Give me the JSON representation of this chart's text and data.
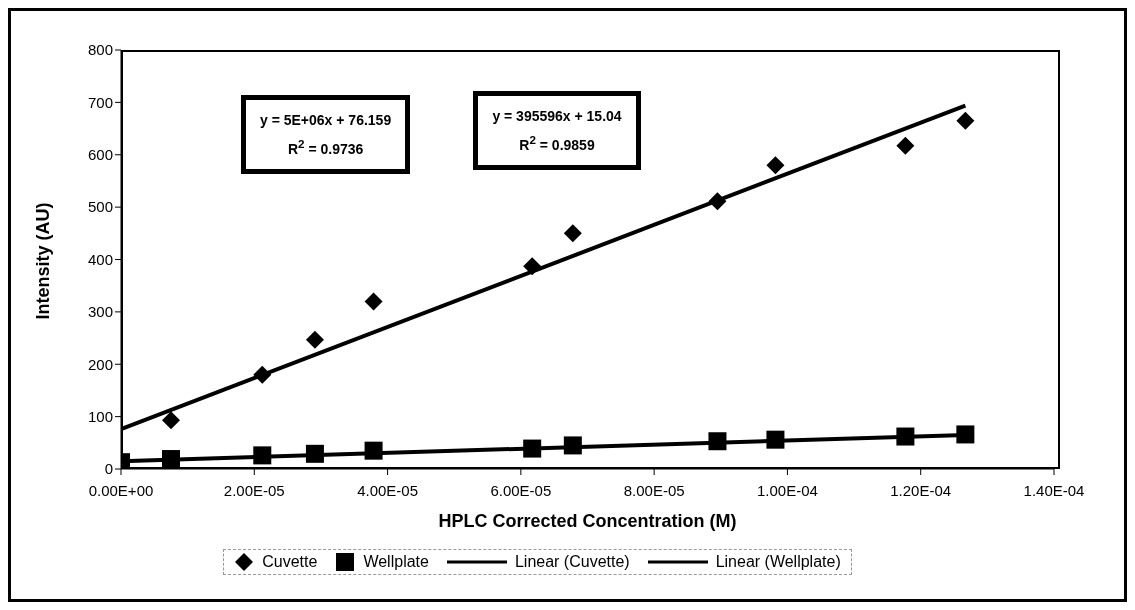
{
  "chart_data": {
    "type": "scatter",
    "xlabel": "HPLC Corrected Concentration (M)",
    "ylabel": "Intensity (AU)",
    "xlim": [
      0,
      0.00014
    ],
    "ylim": [
      0,
      800
    ],
    "xticks": [
      {
        "value": 0,
        "label": "0.00E+00"
      },
      {
        "value": 2e-05,
        "label": "2.00E-05"
      },
      {
        "value": 4e-05,
        "label": "4.00E-05"
      },
      {
        "value": 6e-05,
        "label": "6.00E-05"
      },
      {
        "value": 8e-05,
        "label": "8.00E-05"
      },
      {
        "value": 0.0001,
        "label": "1.00E-04"
      },
      {
        "value": 0.00012,
        "label": "1.20E-04"
      },
      {
        "value": 0.00014,
        "label": "1.40E-04"
      }
    ],
    "yticks": [
      0,
      100,
      200,
      300,
      400,
      500,
      600,
      700,
      800
    ],
    "grid": false,
    "legend": "bottom",
    "annotations": [
      "y = 5E+06x + 76.159\nR$^{2}$ = 0.9736",
      "y = 395596x + 15.04\nR$^{2}$ = 0.9859"
    ],
    "series": [
      {
        "name": "Cuvette",
        "marker": "diamond",
        "color": "#000000",
        "x": [
          7.5e-06,
          2.12e-05,
          2.91e-05,
          3.79e-05,
          6.17e-05,
          6.78e-05,
          8.95e-05,
          9.82e-05,
          0.0001177,
          0.0001267
        ],
        "values": [
          93,
          180,
          247,
          320,
          387,
          450,
          511,
          580,
          617,
          665
        ]
      },
      {
        "name": "Wellplate",
        "marker": "square",
        "color": "#000000",
        "x": [
          0,
          7.5e-06,
          2.12e-05,
          2.91e-05,
          3.79e-05,
          6.17e-05,
          6.78e-05,
          8.95e-05,
          9.82e-05,
          0.0001177,
          0.0001267
        ],
        "values": [
          13,
          19,
          26,
          29,
          35,
          39,
          45,
          53,
          56,
          62,
          66
        ]
      },
      {
        "name": "Linear (Cuvette)",
        "type": "line",
        "marker": "none",
        "line_style": "solid",
        "color": "#000000",
        "x": [
          0,
          0.0001267
        ],
        "values": [
          76,
          694
        ]
      },
      {
        "name": "Linear (Wellplate)",
        "type": "line",
        "marker": "none",
        "line_style": "solid",
        "color": "#000000",
        "x": [
          0,
          0.0001267
        ],
        "values": [
          15,
          65
        ]
      }
    ]
  }
}
